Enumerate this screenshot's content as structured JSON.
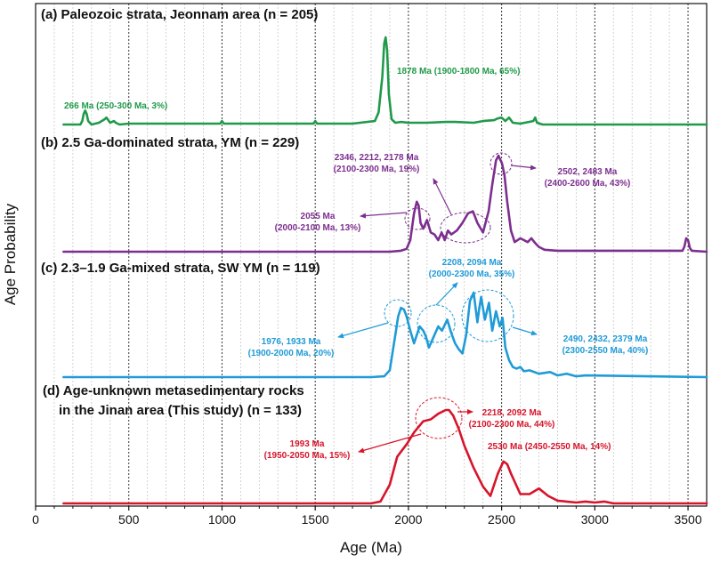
{
  "chart_data": {
    "type": "line",
    "xlabel": "Age (Ma)",
    "ylabel": "Age Probability",
    "xlim": [
      0,
      3600
    ],
    "xticks": [
      0,
      500,
      1000,
      1500,
      2000,
      2500,
      3000,
      3500
    ],
    "grid": {
      "major_dotted": true,
      "minor_step_ma": 100
    },
    "series": [
      {
        "id": "a",
        "name": "(a) Paleozoic strata, Jeonnam area (n = 205)",
        "color": "#1f9a4a",
        "x": [
          150,
          240,
          250,
          258,
          266,
          274,
          282,
          300,
          340,
          370,
          380,
          390,
          400,
          420,
          430,
          450,
          500,
          600,
          800,
          990,
          1000,
          1010,
          1200,
          1490,
          1500,
          1510,
          1700,
          1820,
          1840,
          1860,
          1870,
          1878,
          1886,
          1895,
          1910,
          1930,
          1960,
          2000,
          2100,
          2200,
          2250,
          2350,
          2400,
          2460,
          2480,
          2500,
          2520,
          2540,
          2560,
          2600,
          2670,
          2680,
          2690,
          2720,
          3000,
          3400,
          3600
        ],
        "y": [
          0,
          0,
          0.04,
          0.12,
          0.16,
          0.12,
          0.04,
          0,
          0.02,
          0.06,
          0.08,
          0.05,
          0.02,
          0.04,
          0.02,
          0,
          0.01,
          0.01,
          0.01,
          0.01,
          0.04,
          0.01,
          0.01,
          0.01,
          0.04,
          0.01,
          0.01,
          0.04,
          0.14,
          0.55,
          0.93,
          1.0,
          0.85,
          0.35,
          0.06,
          0.02,
          0.03,
          0.02,
          0.02,
          0.03,
          0.03,
          0.02,
          0.04,
          0.05,
          0.07,
          0.08,
          0.04,
          0.08,
          0.02,
          0.01,
          0.04,
          0.08,
          0.02,
          0,
          0,
          0,
          0
        ]
      },
      {
        "id": "b",
        "name": "(b) 2.5 Ga-dominated strata, YM (n = 229)",
        "color": "#7d2f8f",
        "x": [
          150,
          1900,
          1960,
          1990,
          2010,
          2030,
          2045,
          2055,
          2065,
          2080,
          2100,
          2120,
          2140,
          2160,
          2178,
          2195,
          2212,
          2230,
          2260,
          2290,
          2320,
          2346,
          2370,
          2400,
          2430,
          2450,
          2470,
          2483,
          2490,
          2502,
          2515,
          2530,
          2550,
          2570,
          2600,
          2640,
          2660,
          2680,
          2700,
          2730,
          2800,
          3000,
          3470,
          3480,
          3490,
          3500,
          3510,
          3520,
          3600
        ],
        "y": [
          0,
          0,
          0.01,
          0.03,
          0.12,
          0.4,
          0.52,
          0.48,
          0.3,
          0.24,
          0.33,
          0.2,
          0.18,
          0.12,
          0.2,
          0.12,
          0.22,
          0.18,
          0.22,
          0.3,
          0.4,
          0.42,
          0.3,
          0.2,
          0.42,
          0.7,
          0.95,
          1.0,
          0.97,
          0.92,
          0.8,
          0.52,
          0.22,
          0.1,
          0.14,
          0.1,
          0.14,
          0.09,
          0.05,
          0.02,
          0.01,
          0.01,
          0.01,
          0.05,
          0.14,
          0.12,
          0.04,
          0.01,
          0
        ]
      },
      {
        "id": "c",
        "name": "(c) 2.3–1.9 Ga-mixed strata, SW YM (n = 119)",
        "color": "#1f9bd7",
        "x": [
          150,
          1800,
          1870,
          1900,
          1930,
          1945,
          1960,
          1976,
          1990,
          2010,
          2030,
          2060,
          2080,
          2094,
          2110,
          2130,
          2160,
          2180,
          2208,
          2230,
          2250,
          2270,
          2290,
          2310,
          2330,
          2350,
          2370,
          2379,
          2390,
          2410,
          2432,
          2450,
          2470,
          2490,
          2505,
          2520,
          2540,
          2560,
          2580,
          2600,
          2620,
          2650,
          2700,
          2760,
          2800,
          2850,
          2900,
          2950,
          3600
        ],
        "y": [
          0,
          0,
          0.01,
          0.08,
          0.5,
          0.72,
          0.82,
          0.8,
          0.72,
          0.55,
          0.4,
          0.6,
          0.55,
          0.48,
          0.35,
          0.45,
          0.6,
          0.55,
          0.68,
          0.52,
          0.4,
          0.33,
          0.28,
          0.5,
          0.9,
          1.0,
          0.65,
          0.8,
          0.95,
          0.68,
          0.88,
          0.55,
          0.78,
          0.6,
          0.7,
          0.35,
          0.2,
          0.12,
          0.1,
          0.12,
          0.07,
          0.08,
          0.04,
          0.06,
          0.02,
          0.04,
          0.01,
          0.02,
          0
        ]
      },
      {
        "id": "d",
        "name": "(d) Age-unknown metasedimentary rocks in the Jinan area (This study) (n = 133)",
        "color": "#d7142a",
        "x": [
          150,
          1800,
          1850,
          1900,
          1940,
          1993,
          2030,
          2080,
          2120,
          2160,
          2200,
          2218,
          2240,
          2270,
          2300,
          2350,
          2400,
          2440,
          2480,
          2510,
          2530,
          2550,
          2600,
          2650,
          2700,
          2750,
          2800,
          2900,
          2950,
          3000,
          3050,
          3100,
          3600
        ],
        "y": [
          0,
          0,
          0.02,
          0.2,
          0.5,
          0.64,
          0.76,
          0.88,
          0.9,
          0.96,
          1.0,
          1.0,
          0.94,
          0.8,
          0.62,
          0.38,
          0.18,
          0.08,
          0.32,
          0.45,
          0.42,
          0.32,
          0.1,
          0.1,
          0.16,
          0.08,
          0.03,
          0.01,
          0.02,
          0.01,
          0.02,
          0,
          0
        ]
      }
    ],
    "panels": [
      {
        "title": "(a) Paleozoic strata, Jeonnam area (n = 205)"
      },
      {
        "title": "(b) 2.5 Ga-dominated strata, YM (n = 229)"
      },
      {
        "title": "(c) 2.3–1.9 Ga-mixed strata, SW YM (n = 119)"
      },
      {
        "title_line1": "(d) Age-unknown metasedimentary rocks",
        "title_line2": "in the Jinan area (This study) (n = 133)"
      }
    ],
    "annotations": {
      "a_266": "266 Ma (250-300 Ma, 3%)",
      "a_1878": "1878 Ma (1900-1800 Ma, 65%)",
      "b_2346_l1": "2346, 2212, 2178 Ma",
      "b_2346_l2": "(2100-2300 Ma, 19%)",
      "b_2502_l1": "2502, 2483 Ma",
      "b_2502_l2": "(2400-2600 Ma, 43%)",
      "b_2055_l1": "2055 Ma",
      "b_2055_l2": "(2000-2100 Ma, 13%)",
      "c_2208_l1": "2208, 2094 Ma",
      "c_2208_l2": "(2000-2300 Ma, 35%)",
      "c_1976_l1": "1976, 1933 Ma",
      "c_1976_l2": "(1900-2000 Ma, 20%)",
      "c_2490_l1": "2490, 2432, 2379 Ma",
      "c_2490_l2": "(2300-2550 Ma, 40%)",
      "d_2218_l1": "2218, 2092 Ma",
      "d_2218_l2": "(2100-2300 Ma, 44%)",
      "d_1993_l1": "1993 Ma",
      "d_1993_l2": "(1950-2050 Ma, 15%)",
      "d_2530": "2530 Ma (2450-2550 Ma, 14%)"
    }
  }
}
